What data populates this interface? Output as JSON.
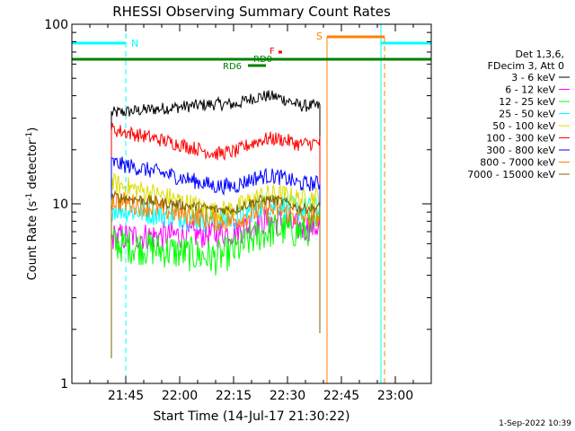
{
  "chart_data": {
    "type": "line",
    "title": "RHESSI Observing Summary Count Rates",
    "xlabel": "Start Time (14-Jul-17 21:30:22)",
    "ylabel_main": "Count Rate (s",
    "ylabel_sup1": "-1",
    "ylabel_mid": " detector",
    "ylabel_sup2": "-1",
    "ylabel_end": ")",
    "y_scale": "log",
    "ylim": [
      1,
      100
    ],
    "xlim_minutes_after_2130": [
      0,
      100
    ],
    "x_ticks": [
      {
        "minute": 15,
        "label": "21:45"
      },
      {
        "minute": 30,
        "label": "22:00"
      },
      {
        "minute": 45,
        "label": "22:15"
      },
      {
        "minute": 60,
        "label": "22:30"
      },
      {
        "minute": 75,
        "label": "22:45"
      },
      {
        "minute": 90,
        "label": "23:00"
      }
    ],
    "y_ticks": [
      {
        "value": 1,
        "label": "1"
      },
      {
        "value": 10,
        "label": "10"
      },
      {
        "value": 100,
        "label": "100"
      }
    ],
    "data_interval_minutes": [
      11,
      69
    ],
    "legend_header": [
      "Det 1,3,6,",
      "FDecim 3, Att 0"
    ],
    "series": [
      {
        "name": "3 - 6 keV",
        "color": "#000000",
        "start": 32,
        "mid": 36,
        "end": 35,
        "noise": 0.035
      },
      {
        "name": "6 - 12 keV",
        "color": "#ff00ff",
        "start": 6.5,
        "mid": 6.8,
        "end": 7.5,
        "noise": 0.08
      },
      {
        "name": "12 - 25 keV",
        "color": "#00ff00",
        "start": 6,
        "mid": 5,
        "end": 7.5,
        "noise": 0.1
      },
      {
        "name": "25 - 50 keV",
        "color": "#00ffff",
        "start": 9.5,
        "mid": 8,
        "end": 9.5,
        "noise": 0.07
      },
      {
        "name": "50 - 100 keV",
        "color": "#dddd00",
        "start": 13,
        "mid": 9,
        "end": 11,
        "noise": 0.06
      },
      {
        "name": "100 - 300 keV",
        "color": "#ff0000",
        "start": 26,
        "mid": 19,
        "end": 22,
        "noise": 0.04
      },
      {
        "name": "300 - 800 keV",
        "color": "#0000ff",
        "start": 17,
        "mid": 12.5,
        "end": 13,
        "noise": 0.045
      },
      {
        "name": "800 - 7000 keV",
        "color": "#ff8000",
        "start": 10.5,
        "mid": 8,
        "end": 8.5,
        "noise": 0.06
      },
      {
        "name": "7000 - 15000 keV",
        "color": "#806000",
        "start": 11,
        "mid": 9.3,
        "end": 9.5,
        "noise": 0.03
      }
    ],
    "annotations": {
      "night_label": "N",
      "saa_label": "S",
      "flare_label": "F",
      "decim_label_upper": "RD0",
      "decim_label_lower": "RD6"
    },
    "night_intervals_minutes": [
      [
        0,
        15
      ],
      [
        86,
        100
      ]
    ],
    "saa_interval_minutes": [
      71,
      87
    ],
    "attenuator_bar_minutes": [
      0,
      100
    ],
    "decim_bar_minutes": [
      49,
      54
    ],
    "flare_mark_minute": 58,
    "datestamp": "1-Sep-2022 10:39",
    "colors": {
      "night": "#00ffff",
      "saa": "#ff8000",
      "attenuator": "#008000",
      "flare": "#ff0000",
      "axes": "#000000"
    }
  }
}
